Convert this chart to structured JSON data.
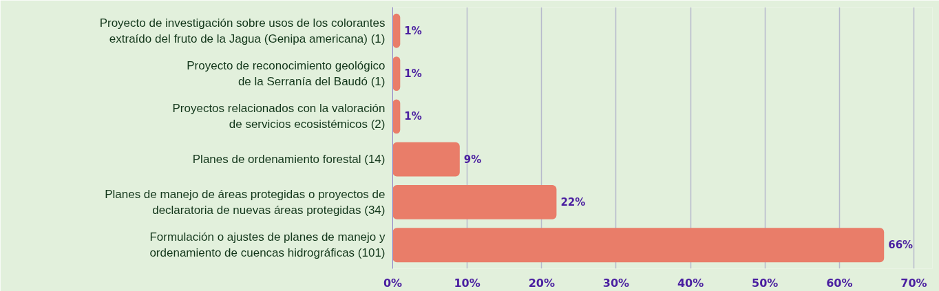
{
  "chart_data": {
    "type": "bar",
    "orientation": "horizontal",
    "categories": [
      "Proyecto de investigación sobre usos de los colorantes\nextraído del fruto de la Jagua (Genipa americana) (1)",
      "Proyecto de reconocimiento geológico\nde la Serranía del Baudó (1)",
      "Proyectos relacionados con la valoración\nde servicios ecosistémicos (2)",
      "Planes de ordenamiento forestal (14)",
      "Planes de manejo de áreas protegidas o proyectos de\ndeclaratoria de nuevas áreas protegidas (34)",
      "Formulación o ajustes de planes de manejo y\nordenamiento de cuencas hidrográficas (101)"
    ],
    "values": [
      1,
      1,
      1,
      9,
      22,
      66
    ],
    "value_labels": [
      "1%",
      "1%",
      "1%",
      "9%",
      "22%",
      "66%"
    ],
    "color": "#e97d69",
    "xlim": [
      0,
      70
    ],
    "xticks": [
      {
        "value": 0,
        "label": "0%"
      },
      {
        "value": 10,
        "label": "10%"
      },
      {
        "value": 20,
        "label": "20%"
      },
      {
        "value": 30,
        "label": "30%"
      },
      {
        "value": 40,
        "label": "40%"
      },
      {
        "value": 50,
        "label": "50%"
      },
      {
        "value": 60,
        "label": "60%"
      },
      {
        "value": 70,
        "label": "70%"
      }
    ],
    "grid": "x"
  }
}
